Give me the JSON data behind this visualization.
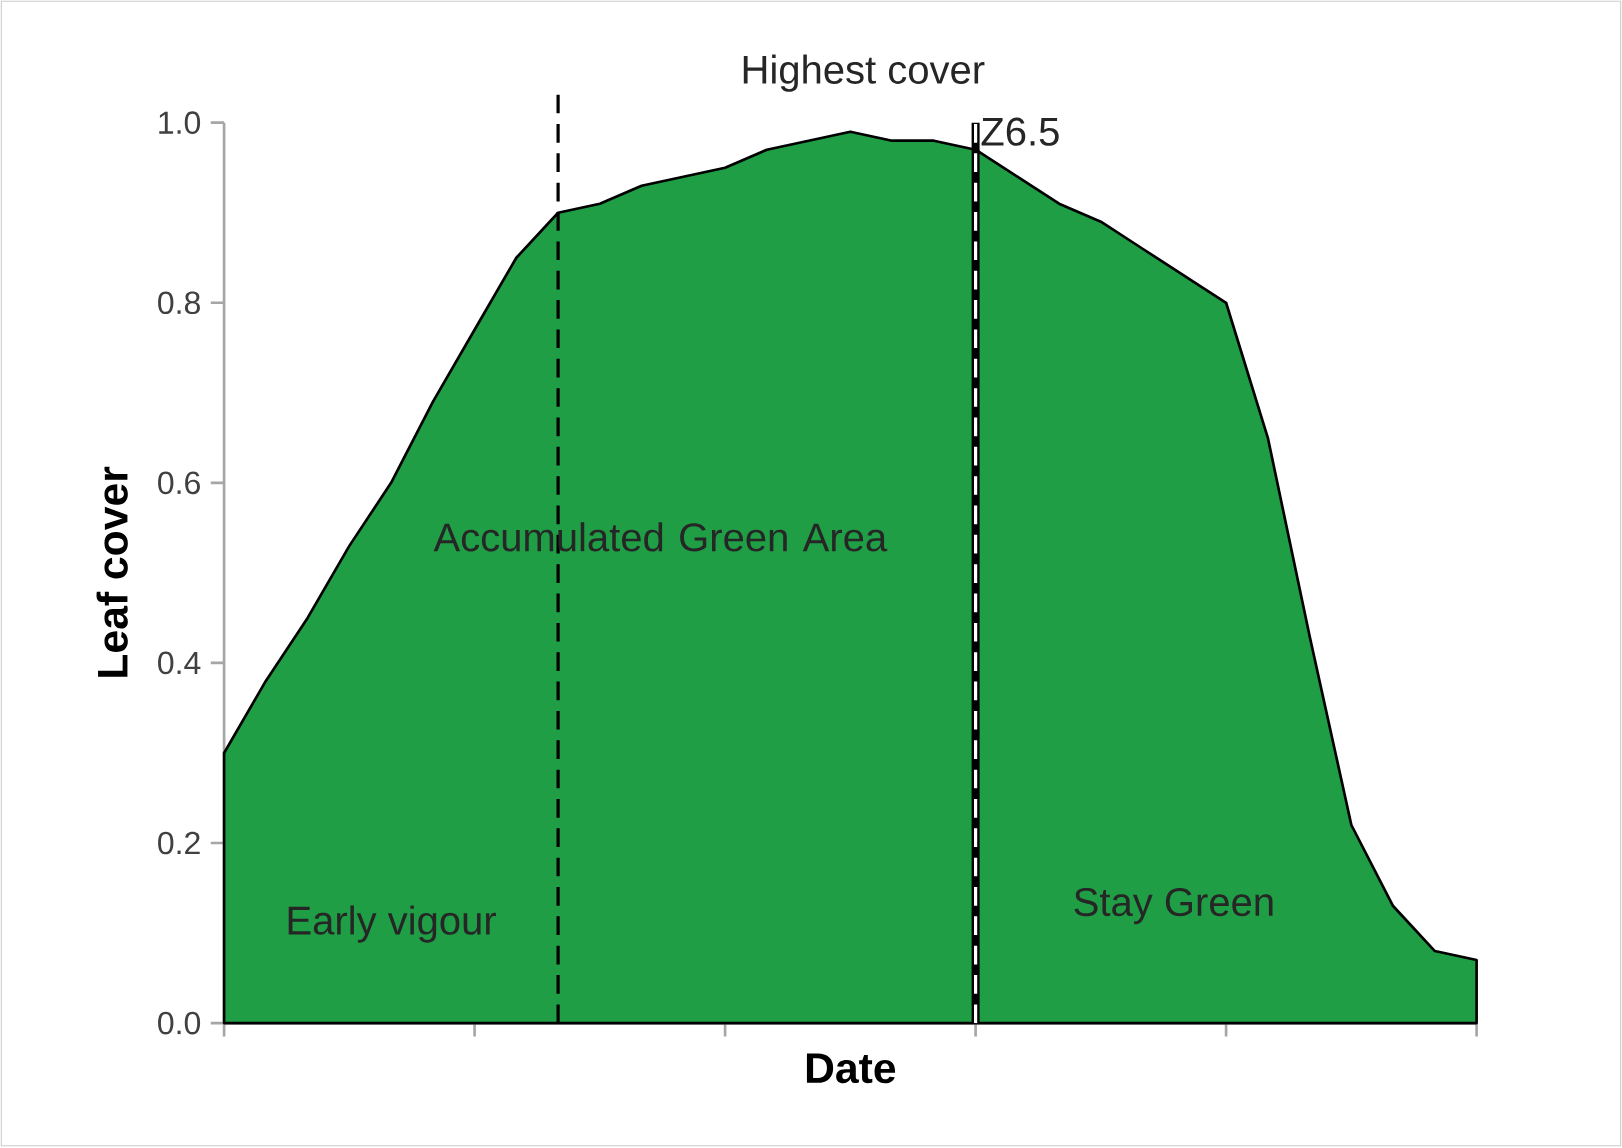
{
  "chart_data": {
    "type": "area",
    "xlabel": "Date",
    "ylabel": "Leaf cover",
    "categories": [
      null,
      null,
      null,
      null,
      null,
      null,
      null,
      null,
      null,
      null,
      null,
      null,
      null,
      null,
      null,
      null,
      null,
      null,
      null,
      null,
      null,
      null,
      null,
      null,
      null,
      null,
      null,
      null,
      null,
      null,
      null
    ],
    "series": [
      {
        "color": "#1f9e45",
        "values": [
          0.3,
          0.38,
          0.45,
          0.53,
          0.6,
          0.69,
          0.77,
          0.85,
          0.9,
          0.91,
          0.93,
          0.94,
          0.95,
          0.97,
          0.98,
          0.99,
          0.98,
          0.98,
          0.97,
          0.94,
          0.91,
          0.89,
          0.86,
          0.83,
          0.8,
          0.65,
          0.43,
          0.22,
          0.13,
          0.08,
          0.07
        ]
      }
    ],
    "ylim": [
      0,
      1.0
    ],
    "yticks": [
      {
        "value": 0,
        "label": "0.0"
      },
      {
        "value": 0.2,
        "label": "0.2"
      },
      {
        "value": 0.4,
        "label": "0.4"
      },
      {
        "value": 0.6,
        "label": "0.6"
      },
      {
        "value": 0.8,
        "label": "0.8"
      },
      {
        "value": 1.0,
        "label": "1.0"
      }
    ],
    "annotations": [
      "Highest cover",
      "Accumulated Green Area",
      "Early vigour",
      "Stay Green",
      "Z6.5"
    ],
    "tick_labels": "y",
    "grid": false
  }
}
